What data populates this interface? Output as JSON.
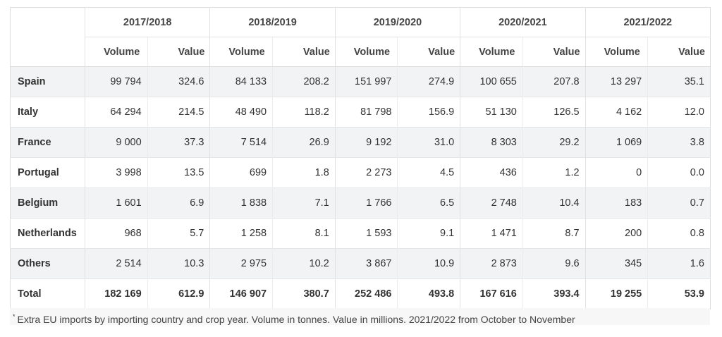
{
  "years": [
    "2017/2018",
    "2018/2019",
    "2019/2020",
    "2020/2021",
    "2021/2022"
  ],
  "sub_headers": {
    "volume": "Volume",
    "value": "Value"
  },
  "rows": [
    {
      "country": "Spain",
      "cells": [
        "99 794",
        "324.6",
        "84 133",
        "208.2",
        "151 997",
        "274.9",
        "100 655",
        "207.8",
        "13 297",
        "35.1"
      ]
    },
    {
      "country": "Italy",
      "cells": [
        "64 294",
        "214.5",
        "48 490",
        "118.2",
        "81 798",
        "156.9",
        "51 130",
        "126.5",
        "4 162",
        "12.0"
      ]
    },
    {
      "country": "France",
      "cells": [
        "9 000",
        "37.3",
        "7 514",
        "26.9",
        "9 192",
        "31.0",
        "8 303",
        "29.2",
        "1 069",
        "3.8"
      ]
    },
    {
      "country": "Portugal",
      "cells": [
        "3 998",
        "13.5",
        "699",
        "1.8",
        "2 273",
        "4.5",
        "436",
        "1.2",
        "0",
        "0.0"
      ]
    },
    {
      "country": "Belgium",
      "cells": [
        "1 601",
        "6.9",
        "1 838",
        "7.1",
        "1 766",
        "6.5",
        "2 748",
        "10.4",
        "183",
        "0.7"
      ]
    },
    {
      "country": "Netherlands",
      "cells": [
        "968",
        "5.7",
        "1 258",
        "8.1",
        "1 593",
        "9.1",
        "1 471",
        "8.7",
        "200",
        "0.8"
      ]
    },
    {
      "country": "Others",
      "cells": [
        "2 514",
        "10.3",
        "2 975",
        "10.2",
        "3 867",
        "10.9",
        "2 873",
        "9.6",
        "345",
        "1.6"
      ]
    }
  ],
  "total": {
    "country": "Total",
    "cells": [
      "182 169",
      "612.9",
      "146 907",
      "380.7",
      "252 486",
      "493.8",
      "167 616",
      "393.4",
      "19 255",
      "53.9"
    ]
  },
  "footnote": {
    "marker": "*",
    "text": "Extra EU imports by importing country and crop year. Volume in tonnes. Value in millions. 2021/2022 from October to November"
  }
}
